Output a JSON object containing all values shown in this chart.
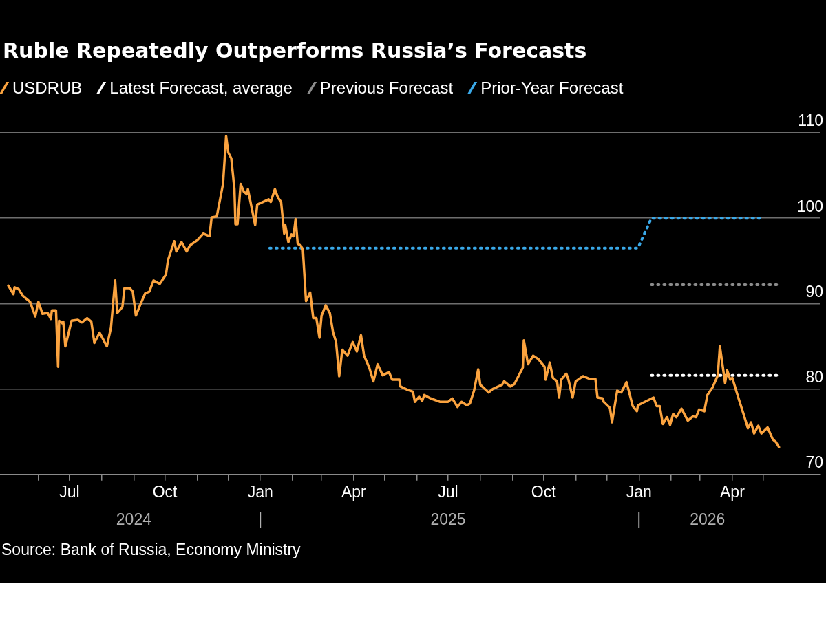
{
  "chart_data": {
    "type": "line",
    "title": "Ruble Repeatedly Outperforms Russia’s Forecasts",
    "legend": "top left",
    "grid": "y",
    "xlim": [
      "2024-04-25",
      "2026-06-25"
    ],
    "xticks": [
      {
        "value": "2024-06-01",
        "label": null
      },
      {
        "value": "2024-07-01",
        "label": "Jul"
      },
      {
        "value": "2024-08-01",
        "label": null
      },
      {
        "value": "2024-09-01",
        "label": null
      },
      {
        "value": "2024-10-01",
        "label": "Oct"
      },
      {
        "value": "2024-11-01",
        "label": null
      },
      {
        "value": "2024-12-01",
        "label": null
      },
      {
        "value": "2025-01-01",
        "label": "Jan"
      },
      {
        "value": "2025-02-01",
        "label": null
      },
      {
        "value": "2025-03-01",
        "label": null
      },
      {
        "value": "2025-04-01",
        "label": "Apr"
      },
      {
        "value": "2025-05-01",
        "label": null
      },
      {
        "value": "2025-06-01",
        "label": null
      },
      {
        "value": "2025-07-01",
        "label": "Jul"
      },
      {
        "value": "2025-08-01",
        "label": null
      },
      {
        "value": "2025-09-01",
        "label": null
      },
      {
        "value": "2025-10-01",
        "label": "Oct"
      },
      {
        "value": "2025-11-01",
        "label": null
      },
      {
        "value": "2025-12-01",
        "label": null
      },
      {
        "value": "2026-01-01",
        "label": "Jan"
      },
      {
        "value": "2026-02-01",
        "label": null
      },
      {
        "value": "2026-03-01",
        "label": null
      },
      {
        "value": "2026-04-01",
        "label": "Apr"
      },
      {
        "value": "2026-05-01",
        "label": null
      }
    ],
    "x2lim": [
      "2024-04-25",
      "2026-06-25"
    ],
    "x2ticks": [
      {
        "value": "2024-09-01",
        "label": "2024"
      },
      {
        "value": "2025-01-01",
        "label": "|"
      },
      {
        "value": "2025-07-01",
        "label": "2025"
      },
      {
        "value": "2026-01-01",
        "label": "|"
      },
      {
        "value": "2026-03-08",
        "label": "2026"
      }
    ],
    "ylim": [
      70,
      110
    ],
    "yticks": [
      70,
      80,
      90,
      100,
      110
    ],
    "annotations": [
      "Source: Bank of Russia, Economy Ministry"
    ],
    "series": [
      {
        "name": "USDRUB",
        "color": "#fba33f",
        "line_style": "solid",
        "x": [
          "2024-05-03",
          "2024-05-08",
          "2024-05-09",
          "2024-05-13",
          "2024-05-17",
          "2024-05-20",
          "2024-05-24",
          "2024-05-29",
          "2024-06-01",
          "2024-06-05",
          "2024-06-10",
          "2024-06-13",
          "2024-06-14",
          "2024-06-18",
          "2024-06-20",
          "2024-06-21",
          "2024-06-24",
          "2024-06-25",
          "2024-06-27",
          "2024-07-03",
          "2024-07-09",
          "2024-07-13",
          "2024-07-18",
          "2024-07-22",
          "2024-07-25",
          "2024-07-30",
          "2024-08-03",
          "2024-08-06",
          "2024-08-10",
          "2024-08-14",
          "2024-08-16",
          "2024-08-21",
          "2024-08-23",
          "2024-08-28",
          "2024-08-31",
          "2024-09-03",
          "2024-09-07",
          "2024-09-12",
          "2024-09-16",
          "2024-09-20",
          "2024-09-26",
          "2024-10-02",
          "2024-10-04",
          "2024-10-10",
          "2024-10-12",
          "2024-10-17",
          "2024-10-22",
          "2024-10-25",
          "2024-11-01",
          "2024-11-07",
          "2024-11-13",
          "2024-11-15",
          "2024-11-20",
          "2024-11-26",
          "2024-11-29",
          "2024-12-01",
          "2024-12-04",
          "2024-12-07",
          "2024-12-08",
          "2024-12-10",
          "2024-12-13",
          "2024-12-16",
          "2024-12-19",
          "2024-12-20",
          "2024-12-23",
          "2024-12-27",
          "2024-12-29",
          "2025-01-09",
          "2025-01-11",
          "2025-01-15",
          "2025-01-18",
          "2025-01-21",
          "2025-01-24",
          "2025-01-25",
          "2025-01-28",
          "2025-01-31",
          "2025-02-02",
          "2025-02-04",
          "2025-02-06",
          "2025-02-09",
          "2025-02-11",
          "2025-02-14",
          "2025-02-18",
          "2025-02-21",
          "2025-02-24",
          "2025-02-27",
          "2025-03-01",
          "2025-03-05",
          "2025-03-09",
          "2025-03-12",
          "2025-03-15",
          "2025-03-18",
          "2025-03-21",
          "2025-03-26",
          "2025-03-31",
          "2025-04-04",
          "2025-04-08",
          "2025-04-11",
          "2025-04-16",
          "2025-04-20",
          "2025-04-24",
          "2025-04-29",
          "2025-05-05",
          "2025-05-08",
          "2025-05-15",
          "2025-05-16",
          "2025-05-23",
          "2025-05-28",
          "2025-05-30",
          "2025-06-03",
          "2025-06-06",
          "2025-06-08",
          "2025-06-14",
          "2025-06-23",
          "2025-07-01",
          "2025-07-05",
          "2025-07-10",
          "2025-07-14",
          "2025-07-19",
          "2025-07-22",
          "2025-07-26",
          "2025-07-30",
          "2025-08-01",
          "2025-08-09",
          "2025-08-13",
          "2025-08-22",
          "2025-08-24",
          "2025-08-30",
          "2025-09-03",
          "2025-09-11",
          "2025-09-12",
          "2025-09-16",
          "2025-09-21",
          "2025-09-26",
          "2025-10-02",
          "2025-10-03",
          "2025-10-07",
          "2025-10-10",
          "2025-10-14",
          "2025-10-16",
          "2025-10-18",
          "2025-10-23",
          "2025-10-25",
          "2025-10-29",
          "2025-11-01",
          "2025-11-08",
          "2025-11-14",
          "2025-11-20",
          "2025-11-22",
          "2025-11-27",
          "2025-11-28",
          "2025-12-04",
          "2025-12-06",
          "2025-12-11",
          "2025-12-15",
          "2025-12-20",
          "2025-12-26",
          "2025-12-30",
          "2025-12-31",
          "2026-01-15",
          "2026-01-18",
          "2026-01-21",
          "2026-01-24",
          "2026-01-28",
          "2026-01-31",
          "2026-02-03",
          "2026-02-06",
          "2026-02-11",
          "2026-02-17",
          "2026-02-22",
          "2026-02-25",
          "2026-02-28",
          "2026-03-05",
          "2026-03-08",
          "2026-03-13",
          "2026-03-18",
          "2026-03-20",
          "2026-03-25",
          "2026-03-27",
          "2026-03-30",
          "2026-04-01",
          "2026-04-07",
          "2026-04-12",
          "2026-04-16",
          "2026-04-19",
          "2026-04-22",
          "2026-04-26",
          "2026-04-29",
          "2026-05-05",
          "2026-05-10",
          "2026-05-13",
          "2026-05-16"
        ],
        "values": [
          92.1,
          91.1,
          91.9,
          91.7,
          90.9,
          90.6,
          90.2,
          88.5,
          90.2,
          88.8,
          88.9,
          88.2,
          89.2,
          89.2,
          82.6,
          88.0,
          87.7,
          87.9,
          85.0,
          88.0,
          88.1,
          87.8,
          88.3,
          87.9,
          85.4,
          86.6,
          85.7,
          85.0,
          87.2,
          92.7,
          88.9,
          89.6,
          91.8,
          91.8,
          91.4,
          88.6,
          89.8,
          91.2,
          91.4,
          92.7,
          92.3,
          93.4,
          95.1,
          97.3,
          96.1,
          97.2,
          96.1,
          96.8,
          97.4,
          98.2,
          97.9,
          100.1,
          100.2,
          104.0,
          109.6,
          107.7,
          107.0,
          103.4,
          99.3,
          99.3,
          104.0,
          103.1,
          102.8,
          103.4,
          101.6,
          99.2,
          101.6,
          102.2,
          101.9,
          103.4,
          102.4,
          101.9,
          98.2,
          99.2,
          97.2,
          98.1,
          97.9,
          99.9,
          97.0,
          96.8,
          96.3,
          90.3,
          91.3,
          88.3,
          88.3,
          86.0,
          88.6,
          89.8,
          88.9,
          86.7,
          85.5,
          81.5,
          84.6,
          83.9,
          85.5,
          84.4,
          86.3,
          83.9,
          82.5,
          80.9,
          82.9,
          81.6,
          82.0,
          81.1,
          81.1,
          80.3,
          79.9,
          79.7,
          78.5,
          79.1,
          78.6,
          79.3,
          78.9,
          78.5,
          78.5,
          78.9,
          77.9,
          78.5,
          78.1,
          78.3,
          79.8,
          82.3,
          80.5,
          79.6,
          80.0,
          80.5,
          80.9,
          80.3,
          80.6,
          82.5,
          85.7,
          82.9,
          83.9,
          83.5,
          82.6,
          81.1,
          83.1,
          81.3,
          80.9,
          79.0,
          81.1,
          81.8,
          81.1,
          79.0,
          80.9,
          81.5,
          81.2,
          81.2,
          79.0,
          78.9,
          78.5,
          77.8,
          76.1,
          79.8,
          79.6,
          80.8,
          78.0,
          77.4,
          78.1,
          79.0,
          78.0,
          78.0,
          75.9,
          76.7,
          75.8,
          77.1,
          76.7,
          77.7,
          76.3,
          76.8,
          76.7,
          77.6,
          77.4,
          79.3,
          80.2,
          81.6,
          85.0,
          80.7,
          82.2,
          81.1,
          81.3,
          78.9,
          77.0,
          75.4,
          76.1,
          74.8,
          75.7,
          74.8,
          75.5,
          74.1,
          73.8,
          73.2
        ]
      },
      {
        "name": "Latest Forecast, average",
        "color": "#ffffff",
        "line_style": "dotted",
        "x": [
          "2026-01-13",
          "2026-05-14"
        ],
        "values": [
          81.6,
          81.6
        ]
      },
      {
        "name": "Previous Forecast",
        "color": "#8c8c8c",
        "line_style": "dotted",
        "x": [
          "2026-01-13",
          "2026-05-14"
        ],
        "values": [
          92.2,
          92.2
        ]
      },
      {
        "name": "Prior-Year Forecast",
        "color": "#3aa9e9",
        "line_style": "dotted",
        "x": [
          "2025-01-10",
          "2025-12-31",
          "2026-01-13",
          "2026-04-29"
        ],
        "values": [
          96.5,
          96.5,
          100.0,
          100.0
        ]
      }
    ]
  }
}
